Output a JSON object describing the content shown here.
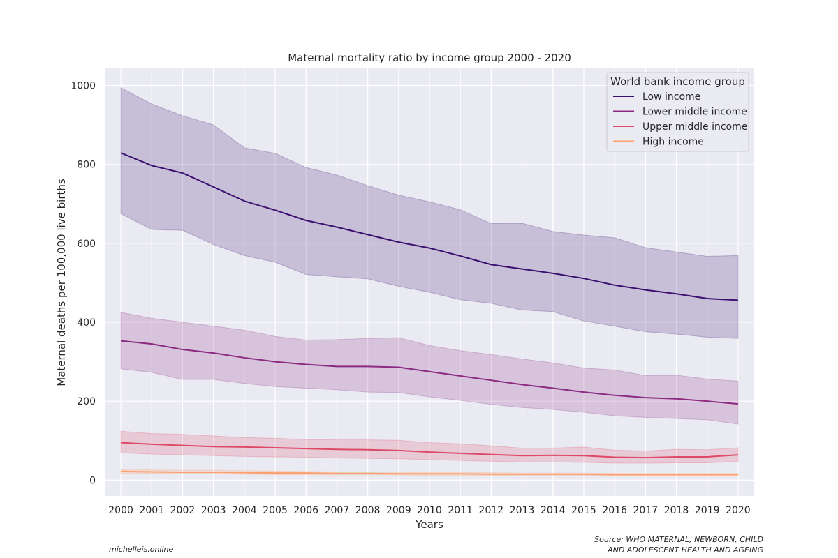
{
  "chart_data": {
    "type": "line",
    "title": "Maternal mortality ratio by income group 2000 - 2020",
    "xlabel": "Years",
    "ylabel": "Maternal deaths per 100,000 live births",
    "x": [
      2000,
      2001,
      2002,
      2003,
      2004,
      2005,
      2006,
      2007,
      2008,
      2009,
      2010,
      2011,
      2012,
      2013,
      2014,
      2015,
      2016,
      2017,
      2018,
      2019,
      2020
    ],
    "xlim": [
      1999.5,
      2020.5
    ],
    "ylim": [
      -40,
      1045
    ],
    "yticks": [
      0,
      200,
      400,
      600,
      800,
      1000
    ],
    "grid": true,
    "legend": {
      "title": "World bank income group",
      "placement": "top-right"
    },
    "series": [
      {
        "name": "Low income",
        "color": "#3b0f70",
        "values": [
          829,
          797,
          778,
          743,
          707,
          684,
          658,
          641,
          622,
          603,
          588,
          568,
          546,
          535,
          524,
          511,
          494,
          482,
          472,
          460,
          456
        ],
        "upper": [
          994,
          953,
          923,
          900,
          842,
          828,
          792,
          773,
          746,
          722,
          705,
          685,
          650,
          651,
          630,
          621,
          614,
          589,
          578,
          567,
          569
        ],
        "lower": [
          675,
          635,
          633,
          597,
          569,
          552,
          521,
          515,
          510,
          491,
          476,
          457,
          448,
          431,
          427,
          403,
          390,
          376,
          370,
          362,
          359
        ]
      },
      {
        "name": "Lower middle income",
        "color": "#8c2981",
        "values": [
          353,
          345,
          331,
          322,
          310,
          300,
          293,
          288,
          288,
          286,
          275,
          264,
          253,
          242,
          233,
          223,
          215,
          209,
          206,
          200,
          193
        ],
        "upper": [
          425,
          410,
          400,
          390,
          380,
          364,
          355,
          356,
          359,
          361,
          341,
          328,
          318,
          307,
          297,
          284,
          279,
          265,
          266,
          256,
          251
        ],
        "lower": [
          282,
          273,
          255,
          255,
          245,
          237,
          233,
          229,
          223,
          222,
          211,
          202,
          192,
          184,
          179,
          172,
          163,
          159,
          156,
          153,
          142
        ]
      },
      {
        "name": "Upper middle income",
        "color": "#de4968",
        "values": [
          95,
          91,
          88,
          85,
          84,
          82,
          80,
          78,
          77,
          75,
          71,
          68,
          65,
          62,
          63,
          62,
          58,
          57,
          59,
          59,
          64
        ],
        "upper": [
          124,
          118,
          116,
          112,
          108,
          106,
          103,
          102,
          102,
          101,
          95,
          92,
          87,
          81,
          81,
          84,
          76,
          74,
          78,
          77,
          82
        ],
        "lower": [
          69,
          66,
          64,
          62,
          60,
          59,
          58,
          56,
          55,
          54,
          52,
          50,
          48,
          46,
          46,
          45,
          43,
          43,
          44,
          44,
          47
        ]
      },
      {
        "name": "High income",
        "color": "#fe9f6d",
        "values": [
          22,
          21,
          20,
          20,
          19,
          18,
          18,
          17,
          17,
          16,
          16,
          16,
          15,
          15,
          15,
          15,
          14,
          14,
          14,
          14,
          14
        ],
        "upper": [
          27,
          26,
          25,
          25,
          24,
          23,
          22,
          21,
          21,
          20,
          20,
          20,
          19,
          18,
          18,
          18,
          17,
          17,
          17,
          17,
          17
        ],
        "lower": [
          17,
          17,
          16,
          16,
          15,
          14,
          14,
          13,
          13,
          13,
          12,
          12,
          12,
          11,
          11,
          11,
          11,
          10,
          10,
          10,
          10
        ]
      }
    ]
  },
  "footer": {
    "credit": "michelleis.online",
    "source_line1": "Source: WHO MATERNAL, NEWBORN, CHILD",
    "source_line2": "AND ADOLESCENT HEALTH AND AGEING"
  }
}
